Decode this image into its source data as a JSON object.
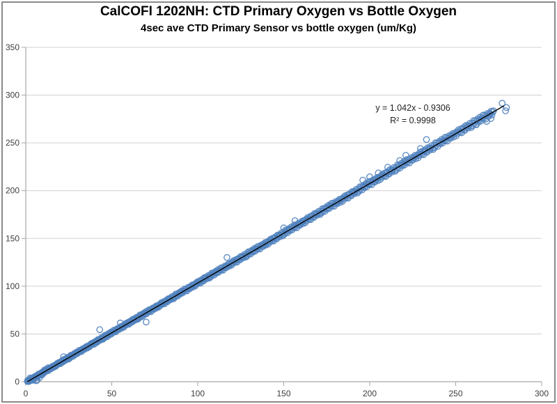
{
  "colors": {
    "marker": "#4f81bd",
    "trendline": "#000000",
    "gridline": "#d0d0d0",
    "axis": "#a6a6a6",
    "tick_label": "#3d3d3d",
    "annotation": "#1f1f1f",
    "border": "#8a8a8a",
    "background": "#ffffff"
  },
  "chart_data": {
    "type": "scatter",
    "title": "CalCOFI 1202NH: CTD Primary Oxygen vs Bottle Oxygen",
    "subtitle": "4sec ave CTD Primary Sensor vs bottle oxygen (um/Kg)",
    "xlim": [
      0,
      300
    ],
    "ylim": [
      0,
      350
    ],
    "x_ticks": [
      0,
      50,
      100,
      150,
      200,
      250,
      300
    ],
    "y_ticks": [
      0,
      50,
      100,
      150,
      200,
      250,
      300,
      350
    ],
    "grid": "horizontal-major-only",
    "legend": "none",
    "marker": {
      "shape": "open-circle",
      "radius": 4.2,
      "stroke_width": 1.4
    },
    "trendline": {
      "slope": 1.042,
      "intercept": -0.9306,
      "x_start": 0.9,
      "x_end": 278,
      "label": "y = 1.042x - 0.9306",
      "r2_label": "R² = 0.9998",
      "r_squared": 0.9998
    },
    "points": [
      [
        1.1,
        1.2
      ],
      [
        2.5,
        3.9
      ],
      [
        3.6,
        2.2
      ],
      [
        4.3,
        1.5
      ],
      [
        6.1,
        1.0
      ],
      [
        6.6,
        1.7
      ],
      [
        8.0,
        4.2
      ],
      [
        9.5,
        7.2
      ],
      [
        11.0,
        12.4
      ],
      [
        13.0,
        14.6
      ],
      [
        22,
        26
      ],
      [
        43,
        54.5
      ],
      [
        55,
        61.5
      ],
      [
        70,
        62.5
      ],
      [
        117,
        130
      ],
      [
        150,
        161
      ],
      [
        156.5,
        168.5
      ],
      [
        196,
        211
      ],
      [
        200,
        214.5
      ],
      [
        205,
        218.5
      ],
      [
        210.5,
        224.5
      ],
      [
        217.5,
        231.5
      ],
      [
        221,
        237
      ],
      [
        229.5,
        244
      ],
      [
        233,
        253.5
      ],
      [
        262,
        269
      ],
      [
        268,
        272.5
      ],
      [
        270.5,
        275.5
      ],
      [
        277,
        291.5
      ],
      [
        279.5,
        287
      ],
      [
        279,
        283.5
      ]
    ],
    "dense_band": {
      "comment": "hundreds of unresolvable overlapping points hugging the regression line",
      "x_start": 1,
      "x_end": 272,
      "count": 620,
      "slope": 1.042,
      "intercept": -0.9306,
      "noise_base": 1.1,
      "noise_growth": 1.9,
      "noise_pattern": [
        0.12,
        -0.45,
        0.66,
        -0.92,
        0.3,
        0.58,
        -0.22,
        -0.7,
        0.88,
        0.02,
        0.48,
        -0.55,
        0.2,
        0.8,
        -0.35,
        -1,
        0.42,
        -0.62,
        1,
        -0.12,
        0.6,
        -0.82,
        0.26,
        0.74,
        -0.48,
        0.06,
        0.9,
        -0.66,
        0.34,
        -0.16,
        0.96,
        -0.38,
        0.54,
        -0.95,
        0.16,
        0.68,
        -0.28,
        -0.58,
        0.44,
        -0.05,
        0.72,
        -0.75,
        0.1,
        0.36,
        -0.86,
        0.5,
        -0.3,
        0.84
      ]
    }
  }
}
